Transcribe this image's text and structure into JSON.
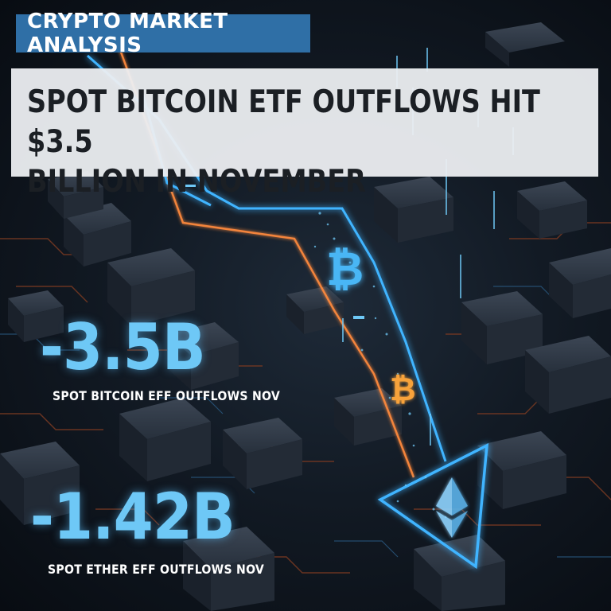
{
  "category_tag": "CRYPTO MARKET ANALYSIS",
  "headline": {
    "line1": "SPOT BITCOIN ETF OUTFLOWS HIT $3.5",
    "line2": "BILLION IN NOVEMBER"
  },
  "stats": [
    {
      "value": "-3.5B",
      "label": "SPOT BITCOIN EFF OUTFLOWS NOV"
    },
    {
      "value": "-1.42B",
      "label": "SPOT ETHER EFF OUTFLOWS NOV"
    }
  ],
  "icons": [
    "bitcoin-icon",
    "bitcoin-icon",
    "ethereum-icon",
    "down-trend-arrow-icon"
  ],
  "colors": {
    "tag_background": "#2f6fa6",
    "headline_background": "#eceef1",
    "headline_text": "#1b1f24",
    "stat_value": "#6ec8f6",
    "arrow_blue": "#3fb4ff",
    "arrow_orange": "#ff8a3d",
    "bitcoin_blue": "#49b6f5",
    "bitcoin_orange": "#f7a23a"
  }
}
